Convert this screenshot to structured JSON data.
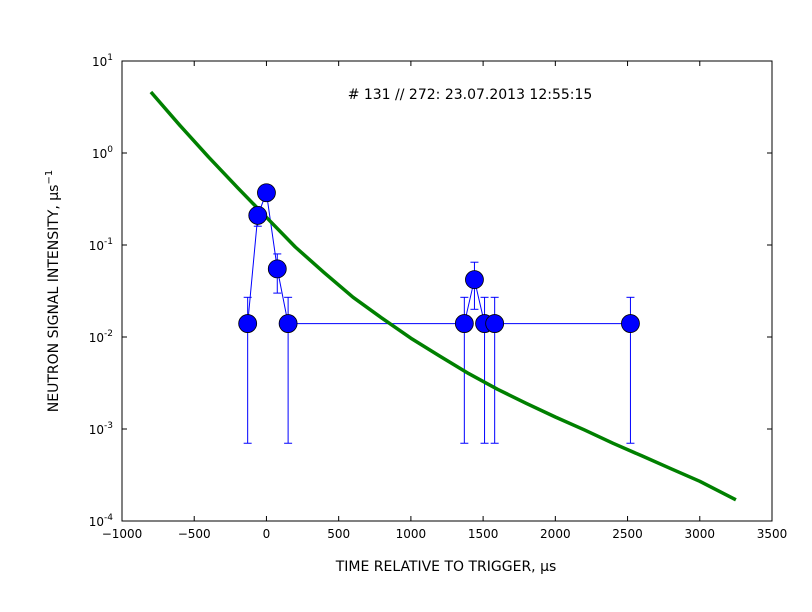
{
  "chart_data": {
    "type": "scatter",
    "annotation": "# 131 // 272: 23.07.2013 12:55:15",
    "xlabel": "TIME RELATIVE TO TRIGGER, μs",
    "ylabel": "NEUTRON SIGNAL INTENSITY, μs",
    "ylabel_superscript": "−1",
    "xlim": [
      -1000,
      3500
    ],
    "ylim": [
      0.0001,
      10
    ],
    "yscale": "log",
    "grid": false,
    "x_ticks": [
      -1000,
      -500,
      0,
      500,
      1000,
      1500,
      2000,
      2500,
      3000,
      3500
    ],
    "x_tick_labels": [
      "−1000",
      "−500",
      "0",
      "500",
      "1000",
      "1500",
      "2000",
      "2500",
      "3000",
      "3500"
    ],
    "y_ticks": [
      {
        "value": 0.0001,
        "base": "10",
        "exp": "-4"
      },
      {
        "value": 0.001,
        "base": "10",
        "exp": "-3"
      },
      {
        "value": 0.01,
        "base": "10",
        "exp": "-2"
      },
      {
        "value": 0.1,
        "base": "10",
        "exp": "-1"
      },
      {
        "value": 1,
        "base": "10",
        "exp": "0"
      },
      {
        "value": 10,
        "base": "10",
        "exp": "1"
      }
    ],
    "series": [
      {
        "kind": "errorbar-points",
        "color": "#0000ff",
        "points": [
          {
            "x": -130,
            "y": 0.014,
            "ylo": 0.0007,
            "yhi": 0.027
          },
          {
            "x": -60,
            "y": 0.21,
            "ylo": 0.16,
            "yhi": 0.26
          },
          {
            "x": 0,
            "y": 0.37,
            "ylo": 0.3,
            "yhi": 0.44
          },
          {
            "x": 75,
            "y": 0.055,
            "ylo": 0.03,
            "yhi": 0.08
          },
          {
            "x": 150,
            "y": 0.014,
            "ylo": 0.0007,
            "yhi": 0.027
          },
          {
            "x": 1370,
            "y": 0.014,
            "ylo": 0.0007,
            "yhi": 0.027
          },
          {
            "x": 1440,
            "y": 0.042,
            "ylo": 0.02,
            "yhi": 0.065
          },
          {
            "x": 1510,
            "y": 0.014,
            "ylo": 0.0007,
            "yhi": 0.027
          },
          {
            "x": 1580,
            "y": 0.014,
            "ylo": 0.0007,
            "yhi": 0.027
          },
          {
            "x": 2520,
            "y": 0.014,
            "ylo": 0.0007,
            "yhi": 0.027
          }
        ]
      },
      {
        "kind": "line",
        "color": "#008000",
        "x": [
          -800,
          -600,
          -400,
          -200,
          0,
          200,
          400,
          600,
          800,
          1000,
          1200,
          1400,
          1600,
          1800,
          2000,
          2200,
          2400,
          2600,
          2800,
          3000,
          3250
        ],
        "y": [
          4.6,
          2.0,
          0.9,
          0.42,
          0.2,
          0.095,
          0.05,
          0.027,
          0.016,
          0.0097,
          0.0062,
          0.004,
          0.0027,
          0.0019,
          0.00135,
          0.00098,
          0.0007,
          0.00051,
          0.00037,
          0.00027,
          0.00017
        ]
      }
    ]
  }
}
